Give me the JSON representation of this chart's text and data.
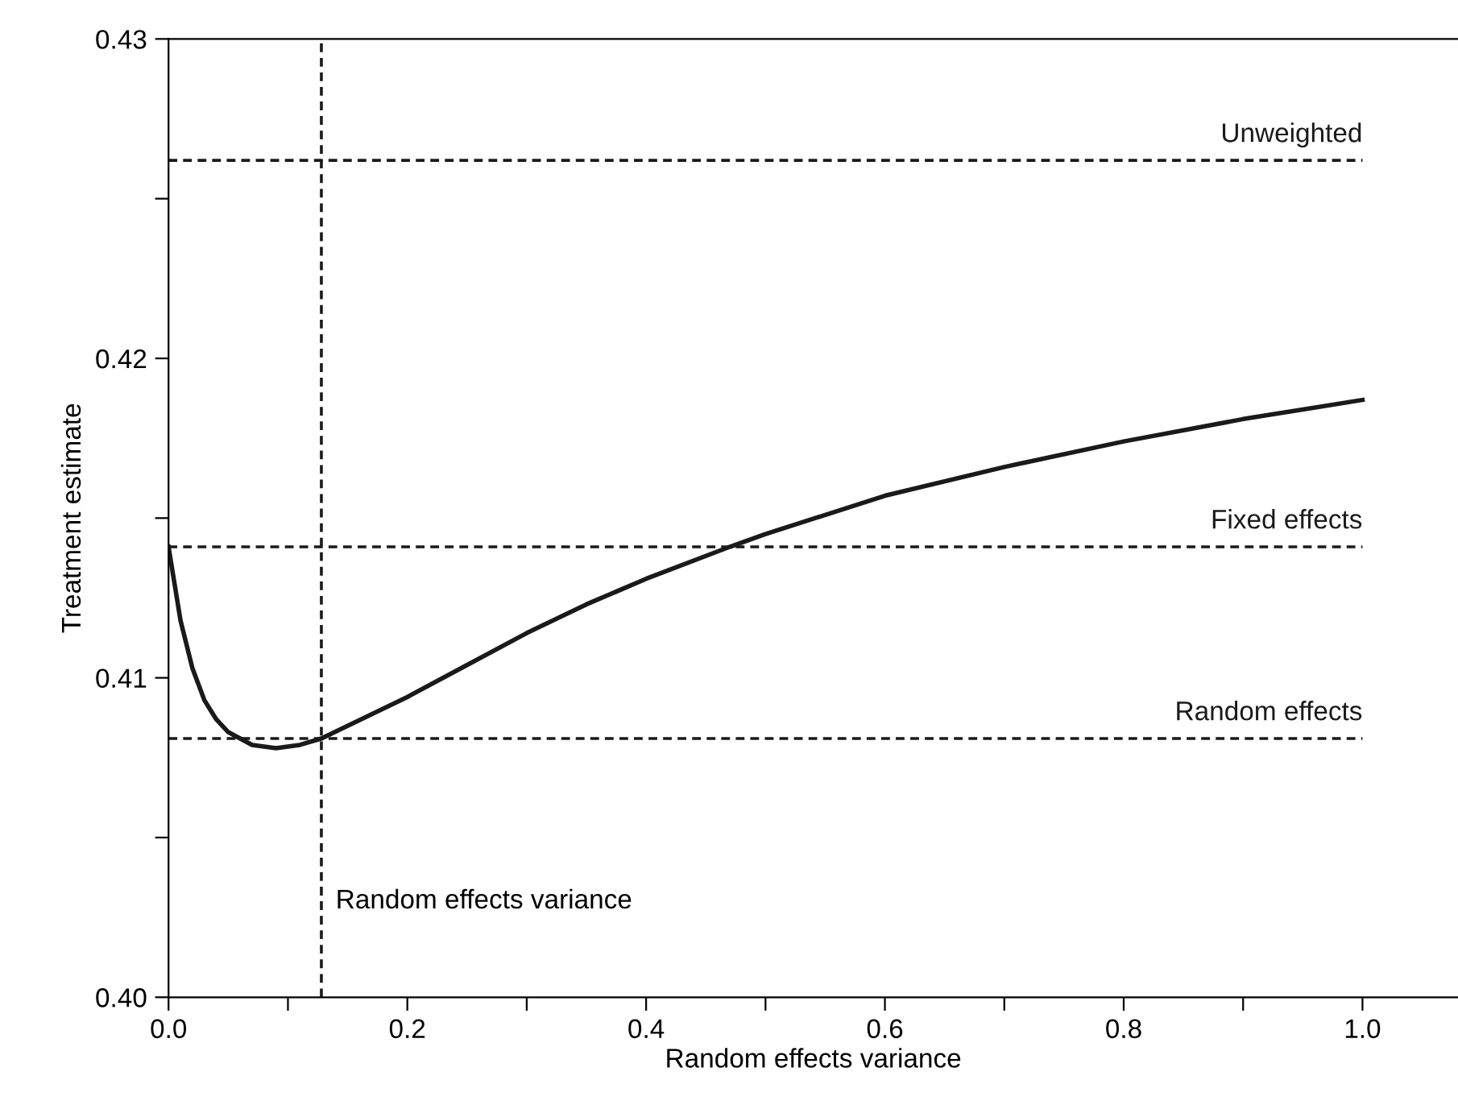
{
  "chart_data": {
    "type": "line",
    "xlabel": "Random effects variance",
    "ylabel": "Treatment estimate",
    "xlim": [
      0,
      1.08
    ],
    "ylim": [
      0.4,
      0.43
    ],
    "xticks": [
      "0.0",
      0.2,
      0.4,
      0.6,
      0.8,
      "1.0",
      {
        "value": 0.1,
        "label": null
      },
      {
        "value": 0.3,
        "label": null
      },
      {
        "value": 0.5,
        "label": null
      },
      {
        "value": 0.7,
        "label": null
      },
      {
        "value": 0.9,
        "label": null
      }
    ],
    "yticks": [
      {
        "value": 0.4,
        "label": "0.40"
      },
      0.41,
      0.42,
      0.43,
      {
        "value": 0.405,
        "label": null
      },
      {
        "value": 0.415,
        "label": null
      },
      {
        "value": 0.425,
        "label": null
      }
    ],
    "grid": false,
    "legend": false,
    "marker": "none",
    "series": [
      {
        "color": "#1a1a1a",
        "line_style": "solid",
        "x": [
          0,
          0.01,
          0.02,
          0.03,
          0.04,
          0.05,
          0.07,
          0.09,
          0.11,
          0.128,
          0.15,
          0.2,
          0.25,
          0.3,
          0.35,
          0.4,
          0.47,
          0.5,
          0.6,
          0.7,
          0.8,
          0.9,
          1.0
        ],
        "values": [
          0.4141,
          0.4118,
          0.4103,
          0.4093,
          0.4087,
          0.4083,
          0.4079,
          0.4078,
          0.4079,
          0.4081,
          0.4085,
          0.4094,
          0.4104,
          0.4114,
          0.4123,
          0.4131,
          0.4141,
          0.4145,
          0.4157,
          0.4166,
          0.4174,
          0.4181,
          0.4187
        ]
      },
      {
        "name": "Unweighted",
        "color": "#1a1a1a",
        "line_style": "dashed",
        "x": [
          0,
          1.0
        ],
        "values": [
          0.4262,
          0.4262
        ]
      },
      {
        "name": "Fixed effects",
        "color": "#1a1a1a",
        "line_style": "dashed",
        "x": [
          0,
          1.0
        ],
        "values": [
          0.4141,
          0.4141
        ]
      },
      {
        "name": "Random effects",
        "color": "#1a1a1a",
        "line_style": "dashed",
        "x": [
          0,
          1.0
        ],
        "values": [
          0.4081,
          0.4081
        ]
      }
    ],
    "ref_lines": [
      {
        "axis": "x",
        "value": 0.128,
        "label": "Random effects variance",
        "color": "#1a1a1a",
        "line_style": "dashed"
      }
    ]
  }
}
